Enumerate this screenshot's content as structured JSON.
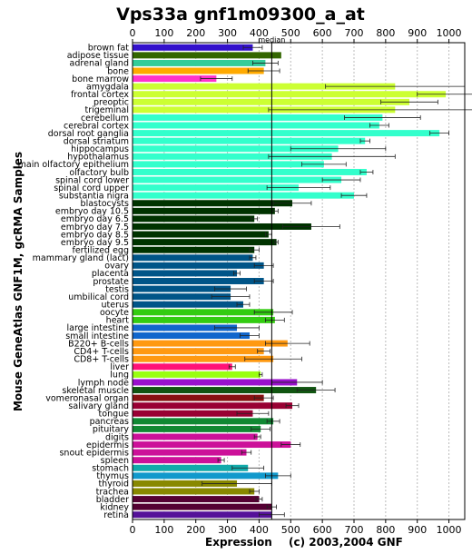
{
  "chart_data": {
    "type": "bar",
    "orientation": "horizontal",
    "title": "Vps33a gnf1m09300_a_at",
    "xlabel": "Expression",
    "ylabel": "Mouse GeneAtlas GNF1M, gcRMA Samples",
    "footer": "(c) 2003,2004 GNF",
    "median_label": "median",
    "median": 440,
    "xlim": [
      0,
      1050
    ],
    "xticks": [
      0,
      100,
      200,
      300,
      400,
      500,
      600,
      700,
      800,
      900,
      1000
    ],
    "grid": true,
    "categories": [
      {
        "label": "brown fat",
        "value": 380,
        "err": 30,
        "color": "#3311cc"
      },
      {
        "label": "adipose tissue",
        "value": 470,
        "err": 0,
        "color": "#336600"
      },
      {
        "label": "adrenal gland",
        "value": 420,
        "err": 40,
        "color": "#33cc99"
      },
      {
        "label": "bone",
        "value": 415,
        "err": 50,
        "color": "#ffaa00"
      },
      {
        "label": "bone marrow",
        "value": 265,
        "err": 50,
        "color": "#ff33cc"
      },
      {
        "label": "amygdala",
        "value": 830,
        "err": 220,
        "color": "#ccff33"
      },
      {
        "label": "frontal cortex",
        "value": 990,
        "err": 90,
        "color": "#ccff33"
      },
      {
        "label": "preoptic",
        "value": 875,
        "err": 90,
        "color": "#ccff33"
      },
      {
        "label": "trigeminal",
        "value": 830,
        "err": 400,
        "color": "#ccff33"
      },
      {
        "label": "cerebellum",
        "value": 790,
        "err": 120,
        "color": "#33ffcc"
      },
      {
        "label": "cerebral cortex",
        "value": 780,
        "err": 30,
        "color": "#33ffcc"
      },
      {
        "label": "dorsal root ganglia",
        "value": 970,
        "err": 30,
        "color": "#33ffcc"
      },
      {
        "label": "dorsal striatum",
        "value": 735,
        "err": 15,
        "color": "#33ffcc"
      },
      {
        "label": "hippocampus",
        "value": 650,
        "err": 150,
        "color": "#33ffcc"
      },
      {
        "label": "hypothalamus",
        "value": 630,
        "err": 200,
        "color": "#33ffcc"
      },
      {
        "label": "main olfactory epithelium",
        "value": 605,
        "err": 70,
        "color": "#33ffcc"
      },
      {
        "label": "olfactory bulb",
        "value": 740,
        "err": 20,
        "color": "#33ffcc"
      },
      {
        "label": "spinal cord lower",
        "value": 660,
        "err": 60,
        "color": "#33ffcc"
      },
      {
        "label": "spinal cord upper",
        "value": 525,
        "err": 100,
        "color": "#33ffcc"
      },
      {
        "label": "substantia nigra",
        "value": 700,
        "err": 40,
        "color": "#33ffcc"
      },
      {
        "label": "blastocysts",
        "value": 505,
        "err": 60,
        "color": "#003300"
      },
      {
        "label": "embryo day 10.5",
        "value": 450,
        "err": 10,
        "color": "#003300"
      },
      {
        "label": "embryo day 6.5",
        "value": 385,
        "err": 10,
        "color": "#003300"
      },
      {
        "label": "embryo day 7.5",
        "value": 565,
        "err": 90,
        "color": "#003300"
      },
      {
        "label": "embryo day 8.5",
        "value": 430,
        "err": 10,
        "color": "#003300"
      },
      {
        "label": "embryo day 9.5",
        "value": 455,
        "err": 5,
        "color": "#003300"
      },
      {
        "label": "fertilized egg",
        "value": 385,
        "err": 15,
        "color": "#003300"
      },
      {
        "label": "mammary gland (lact)",
        "value": 380,
        "err": 10,
        "color": "#005588"
      },
      {
        "label": "ovary",
        "value": 415,
        "err": 30,
        "color": "#005588"
      },
      {
        "label": "placenta",
        "value": 330,
        "err": 10,
        "color": "#005588"
      },
      {
        "label": "prostate",
        "value": 415,
        "err": 30,
        "color": "#005588"
      },
      {
        "label": "testis",
        "value": 310,
        "err": 50,
        "color": "#005588"
      },
      {
        "label": "umbilical cord",
        "value": 310,
        "err": 60,
        "color": "#005588"
      },
      {
        "label": "uterus",
        "value": 350,
        "err": 20,
        "color": "#005588"
      },
      {
        "label": "oocyte",
        "value": 445,
        "err": 60,
        "color": "#33cc11"
      },
      {
        "label": "heart",
        "value": 450,
        "err": 30,
        "color": "#33cc11"
      },
      {
        "label": "large intestine",
        "value": 330,
        "err": 70,
        "color": "#1166cc"
      },
      {
        "label": "small intestine",
        "value": 370,
        "err": 30,
        "color": "#1166cc"
      },
      {
        "label": "B220+ B-cells",
        "value": 490,
        "err": 70,
        "color": "#ff9911"
      },
      {
        "label": "CD4+ T-cells",
        "value": 415,
        "err": 20,
        "color": "#ff9911"
      },
      {
        "label": "CD8+ T-cells",
        "value": 445,
        "err": 90,
        "color": "#ff9911"
      },
      {
        "label": "liver",
        "value": 315,
        "err": 10,
        "color": "#ff1177"
      },
      {
        "label": "lung",
        "value": 405,
        "err": 5,
        "color": "#99ff11"
      },
      {
        "label": "lymph node",
        "value": 520,
        "err": 80,
        "color": "#9911cc"
      },
      {
        "label": "skeletal muscle",
        "value": 580,
        "err": 60,
        "color": "#115511"
      },
      {
        "label": "vomeronasal organ",
        "value": 415,
        "err": 30,
        "color": "#881111"
      },
      {
        "label": "salivary gland",
        "value": 505,
        "err": 20,
        "color": "#990033"
      },
      {
        "label": "tongue",
        "value": 380,
        "err": 50,
        "color": "#990033"
      },
      {
        "label": "pancreas",
        "value": 445,
        "err": 20,
        "color": "#118833"
      },
      {
        "label": "pituitary",
        "value": 405,
        "err": 30,
        "color": "#118833"
      },
      {
        "label": "digits",
        "value": 395,
        "err": 10,
        "color": "#cc1199"
      },
      {
        "label": "epidermis",
        "value": 500,
        "err": 30,
        "color": "#cc1199"
      },
      {
        "label": "snout epidermis",
        "value": 360,
        "err": 15,
        "color": "#cc1199"
      },
      {
        "label": "spleen",
        "value": 280,
        "err": 10,
        "color": "#cc1199"
      },
      {
        "label": "stomach",
        "value": 365,
        "err": 50,
        "color": "#11aaaa"
      },
      {
        "label": "thymus",
        "value": 460,
        "err": 40,
        "color": "#1199cc"
      },
      {
        "label": "thyroid",
        "value": 330,
        "err": 110,
        "color": "#888800"
      },
      {
        "label": "trachea",
        "value": 385,
        "err": 15,
        "color": "#888800"
      },
      {
        "label": "bladder",
        "value": 400,
        "err": 10,
        "color": "#550033"
      },
      {
        "label": "kidney",
        "value": 440,
        "err": 15,
        "color": "#550033"
      },
      {
        "label": "retina",
        "value": 440,
        "err": 40,
        "color": "#551199"
      }
    ]
  }
}
